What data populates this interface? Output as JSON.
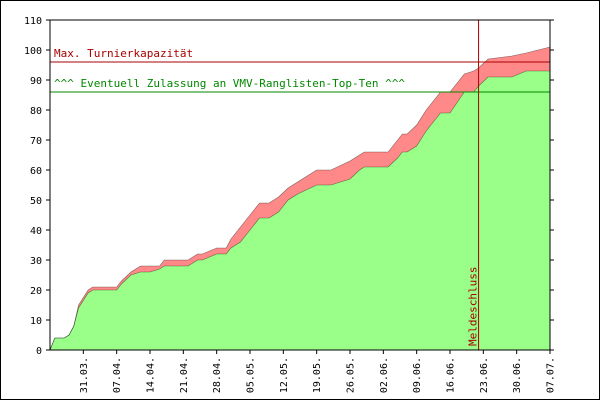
{
  "chart_data": {
    "type": "area",
    "title": "",
    "xlabel": "",
    "ylabel": "",
    "ylim": [
      0,
      110
    ],
    "yticks": [
      0,
      10,
      20,
      30,
      40,
      50,
      60,
      70,
      80,
      90,
      100,
      110
    ],
    "grid": false,
    "legend": "none",
    "x": [
      "24.03.",
      "25.03.",
      "27.03.",
      "28.03.",
      "29.03.",
      "30.03.",
      "01.04.",
      "02.04.",
      "03.04.",
      "04.04.",
      "07.04.",
      "08.04.",
      "10.04.",
      "12.04.",
      "14.04.",
      "16.04.",
      "17.04.",
      "21.04.",
      "22.04.",
      "24.04.",
      "25.04.",
      "28.04.",
      "30.04.",
      "01.05.",
      "03.05.",
      "05.05.",
      "07.05.",
      "09.05.",
      "11.05.",
      "13.05.",
      "15.05.",
      "19.05.",
      "21.05.",
      "22.05.",
      "26.05.",
      "28.05.",
      "29.05.",
      "02.06.",
      "03.06.",
      "05.06.",
      "06.06.",
      "07.06.",
      "09.06.",
      "11.06.",
      "12.06.",
      "14.06.",
      "16.06.",
      "19.06.",
      "21.06.",
      "22.06.",
      "24.06.",
      "29.06.",
      "02.07.",
      "07.07."
    ],
    "xticks": [
      "31.03.",
      "07.04.",
      "14.04.",
      "21.04.",
      "28.04.",
      "05.05.",
      "12.05.",
      "19.05.",
      "26.05.",
      "02.06.",
      "09.06.",
      "16.06.",
      "23.06.",
      "30.06.",
      "07.07."
    ],
    "series": [
      {
        "values": [
          0,
          4,
          4,
          5,
          8,
          14,
          19,
          20,
          20,
          20,
          20,
          22,
          25,
          26,
          26,
          27,
          28,
          28,
          28,
          30,
          30,
          32,
          32,
          34,
          36,
          40,
          44,
          44,
          46,
          50,
          52,
          55,
          55,
          55,
          57,
          60,
          61,
          61,
          61,
          64,
          66,
          66,
          68,
          73,
          75,
          79,
          79,
          86,
          86,
          88,
          91,
          91,
          93,
          93
        ],
        "color": "#99ff88"
      },
      {
        "values": [
          0,
          4,
          4,
          5,
          8,
          15,
          20,
          21,
          21,
          21,
          21,
          23,
          26,
          28,
          28,
          28,
          30,
          30,
          30,
          32,
          32,
          34,
          34,
          37,
          41,
          45,
          49,
          49,
          51,
          54,
          56,
          60,
          60,
          60,
          63,
          65,
          66,
          66,
          66,
          70,
          72,
          72,
          75,
          80,
          82,
          86,
          86,
          92,
          93,
          94,
          97,
          98,
          99,
          101
        ],
        "color": "#ff8888"
      }
    ],
    "reference_lines": [
      {
        "y": 96,
        "label": "Max. Turnierkapazität",
        "color": "#aa0000"
      },
      {
        "y": 86,
        "label": "^^^ Eventuell Zulassung an VMV-Ranglisten-Top-Ten ^^^",
        "color": "#008800"
      }
    ],
    "vertical_marker": {
      "x": "22.06.",
      "label": "Meldeschluss",
      "color": "#aa0000"
    }
  }
}
